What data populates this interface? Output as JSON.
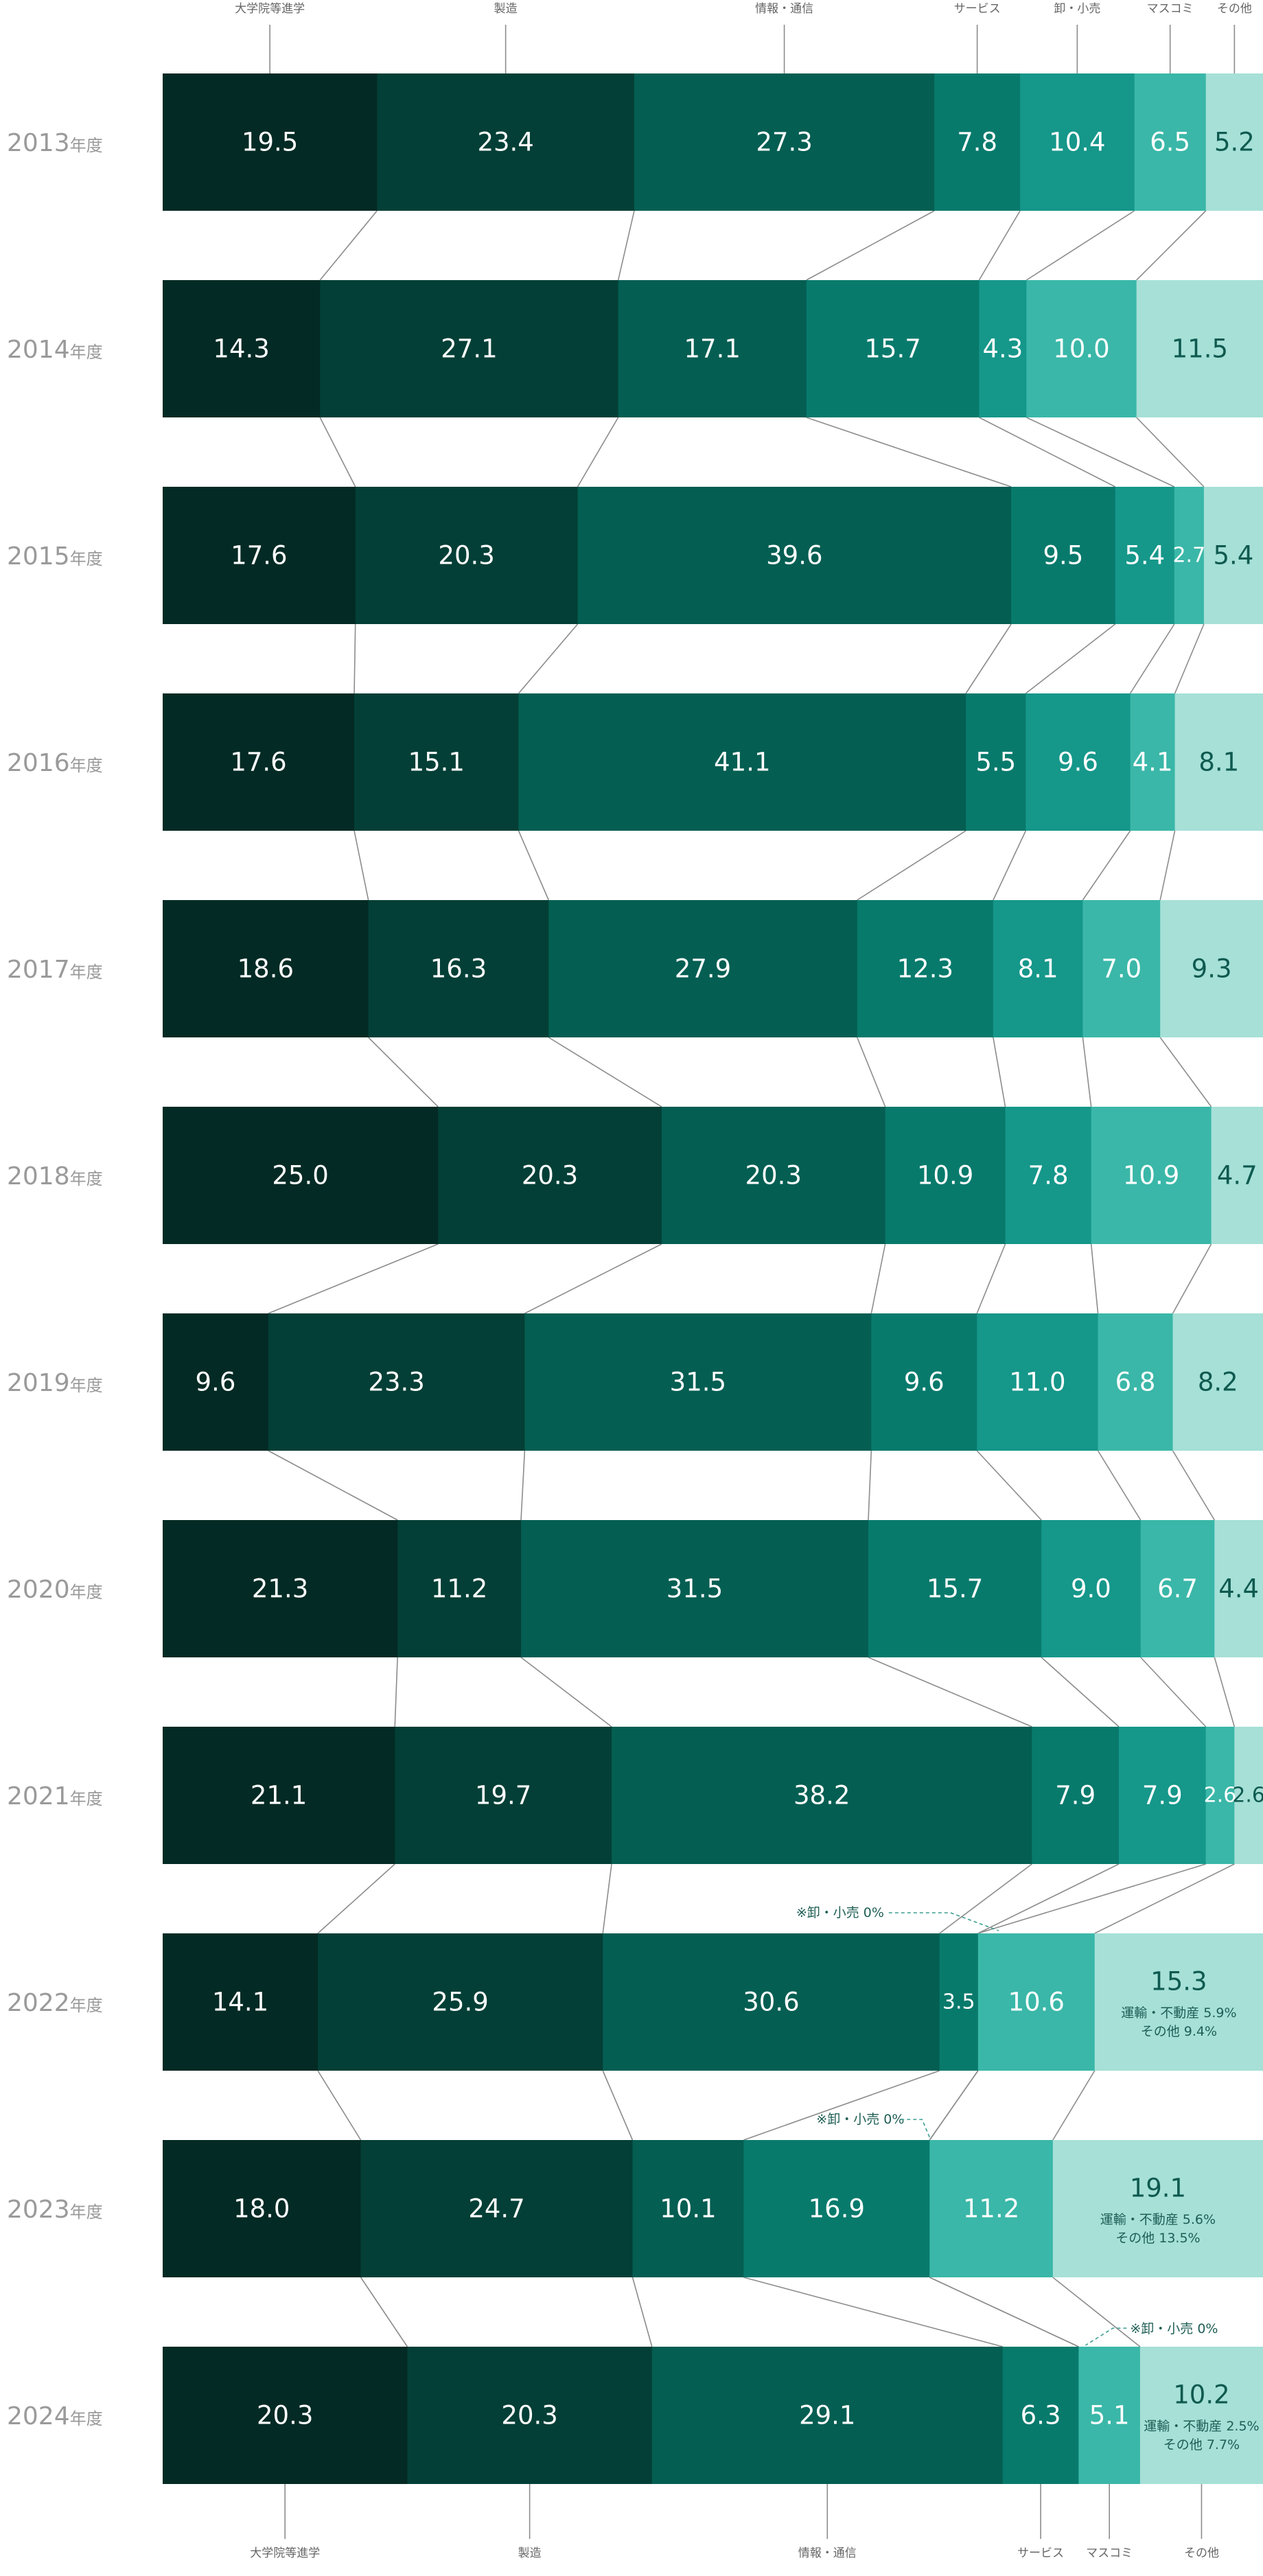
{
  "chart_data": {
    "type": "bar",
    "orientation": "horizontal-stacked-100",
    "year_suffix": "年度",
    "categories": [
      "大学院等進学",
      "製造",
      "情報・通信",
      "サービス",
      "卸・小売",
      "マスコミ",
      "その他"
    ],
    "years": [
      "2013",
      "2014",
      "2015",
      "2016",
      "2017",
      "2018",
      "2019",
      "2020",
      "2021",
      "2022",
      "2023",
      "2024"
    ],
    "colors": [
      "#032a24",
      "#033f36",
      "#045e52",
      "#087a6c",
      "#15978a",
      "#3ab7a8",
      "#a6e0d7"
    ],
    "rows": [
      {
        "year": "2013",
        "values": [
          19.5,
          23.4,
          27.3,
          7.8,
          10.4,
          6.5,
          5.2
        ],
        "labels": [
          "19.5",
          "23.4",
          "27.3",
          "7.8",
          "10.4",
          "6.5",
          "5.2"
        ]
      },
      {
        "year": "2014",
        "values": [
          14.3,
          27.1,
          17.1,
          15.7,
          4.3,
          10.0,
          11.5
        ],
        "labels": [
          "14.3",
          "27.1",
          "17.1",
          "15.7",
          "4.3",
          "10.0",
          "11.5"
        ]
      },
      {
        "year": "2015",
        "values": [
          17.6,
          20.3,
          39.6,
          9.5,
          5.4,
          2.7,
          5.4
        ],
        "labels": [
          "17.6",
          "20.3",
          "39.6",
          "9.5",
          "5.4",
          "2.7",
          "5.4"
        ]
      },
      {
        "year": "2016",
        "values": [
          17.6,
          15.1,
          41.1,
          5.5,
          9.6,
          4.1,
          8.1
        ],
        "labels": [
          "17.6",
          "15.1",
          "41.1",
          "5.5",
          "9.6",
          "4.1",
          "8.1"
        ]
      },
      {
        "year": "2017",
        "values": [
          18.6,
          16.3,
          27.9,
          12.3,
          8.1,
          7.0,
          9.3
        ],
        "labels": [
          "18.6",
          "16.3",
          "27.9",
          "12.3",
          "8.1",
          "7.0",
          "9.3"
        ]
      },
      {
        "year": "2018",
        "values": [
          25.0,
          20.3,
          20.3,
          10.9,
          7.8,
          10.9,
          4.7
        ],
        "labels": [
          "25.0",
          "20.3",
          "20.3",
          "10.9",
          "7.8",
          "10.9",
          "4.7"
        ]
      },
      {
        "year": "2019",
        "values": [
          9.6,
          23.3,
          31.5,
          9.6,
          11.0,
          6.8,
          8.2
        ],
        "labels": [
          "9.6",
          "23.3",
          "31.5",
          "9.6",
          "11.0",
          "6.8",
          "8.2"
        ]
      },
      {
        "year": "2020",
        "values": [
          21.3,
          11.2,
          31.5,
          15.7,
          9.0,
          6.7,
          4.4
        ],
        "labels": [
          "21.3",
          "11.2",
          "31.5",
          "15.7",
          "9.0",
          "6.7",
          "4.4"
        ]
      },
      {
        "year": "2021",
        "values": [
          21.1,
          19.7,
          38.2,
          7.9,
          7.9,
          2.6,
          2.6
        ],
        "labels": [
          "21.1",
          "19.7",
          "38.2",
          "7.9",
          "7.9",
          "2.6",
          "2.6"
        ]
      },
      {
        "year": "2022",
        "values": [
          14.1,
          25.9,
          30.6,
          3.5,
          0,
          10.6,
          15.3
        ],
        "labels": [
          "14.1",
          "25.9",
          "30.6",
          "3.5",
          "",
          "10.6",
          "15.3"
        ],
        "other_breakdown": [
          "運輸・不動産 5.9%",
          "その他 9.4%"
        ],
        "callout": "※卸・小売 0%"
      },
      {
        "year": "2023",
        "values": [
          18.0,
          24.7,
          10.1,
          16.9,
          0,
          11.2,
          19.1
        ],
        "labels": [
          "18.0",
          "24.7",
          "10.1",
          "16.9",
          "",
          "11.2",
          "19.1"
        ],
        "other_breakdown": [
          "運輸・不動産 5.6%",
          "その他 13.5%"
        ],
        "callout": "※卸・小売 0%"
      },
      {
        "year": "2024",
        "values": [
          20.3,
          20.3,
          29.1,
          6.3,
          0,
          5.1,
          10.2
        ],
        "labels": [
          "20.3",
          "20.3",
          "29.1",
          "6.3",
          "",
          "5.1",
          "10.2"
        ],
        "other_breakdown": [
          "運輸・不動産 2.5%",
          "その他 7.7%"
        ],
        "callout": "※卸・小売 0%"
      }
    ],
    "top_axis_labels": [
      "大学院等進学",
      "製造",
      "情報・通信",
      "サービス",
      "卸・小売",
      "マスコミ",
      "その他"
    ],
    "bottom_axis_labels": [
      "大学院等進学",
      "製造",
      "情報・通信",
      "サービス",
      "マスコミ",
      "その他"
    ],
    "xlim": [
      0,
      100
    ],
    "legend": "none",
    "grid": false
  }
}
